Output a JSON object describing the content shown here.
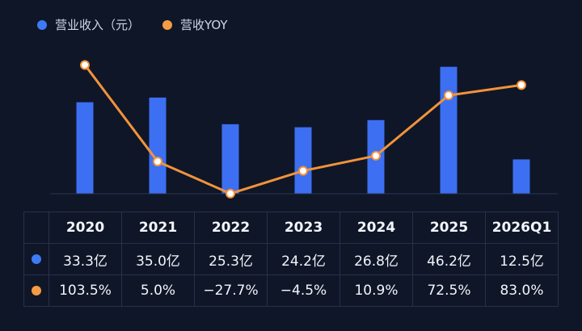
{
  "legend": {
    "revenue_label": "营业收入（元）",
    "yoy_label": "营收YOY"
  },
  "colors": {
    "background": "#0f1628",
    "bar": "#3d6ff2",
    "line": "#f2933a",
    "revenue_marker": "#3d7af5",
    "yoy_marker": "#f49b45"
  },
  "chart_data": {
    "type": "bar",
    "title": "",
    "categories": [
      "2020",
      "2021",
      "2022",
      "2023",
      "2024",
      "2025",
      "2026Q1"
    ],
    "series": [
      {
        "name": "营业收入（元）",
        "type": "bar",
        "values": [
          33.3,
          35.0,
          25.3,
          24.2,
          26.8,
          46.2,
          12.5
        ],
        "unit": "亿"
      },
      {
        "name": "营收YOY",
        "type": "line",
        "values": [
          103.5,
          5.0,
          -27.7,
          -4.5,
          10.9,
          72.5,
          83.0
        ],
        "unit": "%"
      }
    ],
    "ylim_bar": [
      0,
      47
    ],
    "ylim_line": [
      -32,
      108
    ],
    "grid": false,
    "legend_position": "top-left"
  },
  "table": {
    "headers": [
      "2020",
      "2021",
      "2022",
      "2023",
      "2024",
      "2025",
      "2026Q1"
    ],
    "revenue_row": [
      "33.3亿",
      "35.0亿",
      "25.3亿",
      "24.2亿",
      "26.8亿",
      "46.2亿",
      "12.5亿"
    ],
    "yoy_row": [
      "103.5%",
      "5.0%",
      "−27.7%",
      "−4.5%",
      "10.9%",
      "72.5%",
      "83.0%"
    ]
  }
}
